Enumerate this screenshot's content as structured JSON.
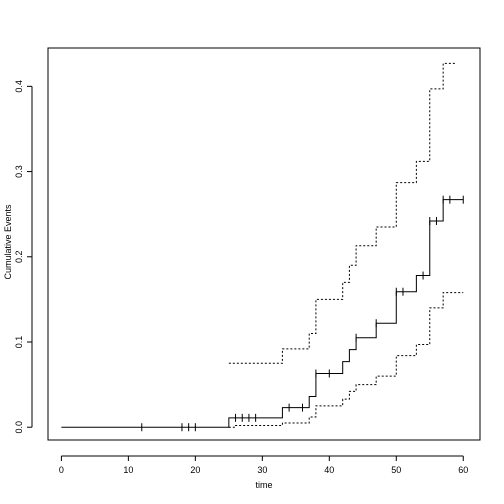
{
  "chart_data": {
    "type": "line",
    "title": "",
    "xlabel": "time",
    "ylabel": "Cumulative Events",
    "xlim": [
      -2,
      62.5
    ],
    "ylim": [
      -0.015,
      0.445
    ],
    "x_ticks": [
      0,
      10,
      20,
      30,
      40,
      50,
      60
    ],
    "y_ticks": [
      0.0,
      0.1,
      0.2,
      0.3,
      0.4
    ],
    "x_tick_labels": [
      "0",
      "10",
      "20",
      "30",
      "40",
      "50",
      "60"
    ],
    "y_tick_labels": [
      "0.0",
      "0.1",
      "0.2",
      "0.3",
      "0.4"
    ],
    "grid": false,
    "legend": "none",
    "series": [
      {
        "style": "solid",
        "steps": [
          [
            0,
            0.0
          ],
          [
            25,
            0.011
          ],
          [
            33,
            0.023
          ],
          [
            37,
            0.036
          ],
          [
            38,
            0.063
          ],
          [
            42,
            0.077
          ],
          [
            43,
            0.091
          ],
          [
            44,
            0.105
          ],
          [
            47,
            0.122
          ],
          [
            50,
            0.159
          ],
          [
            53,
            0.178
          ],
          [
            55,
            0.242
          ],
          [
            57,
            0.267
          ],
          [
            60,
            0.267
          ]
        ],
        "censored": [
          12,
          18,
          19,
          20,
          26,
          27,
          28,
          29,
          34,
          36,
          38,
          40,
          44,
          47,
          50,
          51,
          54,
          55,
          56,
          57,
          58,
          60
        ]
      },
      {
        "style": "dotted",
        "steps": [
          [
            25,
            0.075
          ],
          [
            33,
            0.092
          ],
          [
            37,
            0.11
          ],
          [
            38,
            0.15
          ],
          [
            42,
            0.17
          ],
          [
            43,
            0.19
          ],
          [
            44,
            0.213
          ],
          [
            47,
            0.235
          ],
          [
            50,
            0.287
          ],
          [
            53,
            0.312
          ],
          [
            55,
            0.397
          ],
          [
            57,
            0.427
          ],
          [
            59,
            0.427
          ]
        ]
      },
      {
        "style": "dotted",
        "steps": [
          [
            25,
            0.0
          ],
          [
            26,
            0.002
          ],
          [
            33,
            0.005
          ],
          [
            37,
            0.012
          ],
          [
            38,
            0.025
          ],
          [
            42,
            0.033
          ],
          [
            43,
            0.042
          ],
          [
            44,
            0.05
          ],
          [
            47,
            0.06
          ],
          [
            50,
            0.084
          ],
          [
            53,
            0.097
          ],
          [
            55,
            0.14
          ],
          [
            57,
            0.158
          ],
          [
            60,
            0.158
          ]
        ]
      }
    ]
  }
}
